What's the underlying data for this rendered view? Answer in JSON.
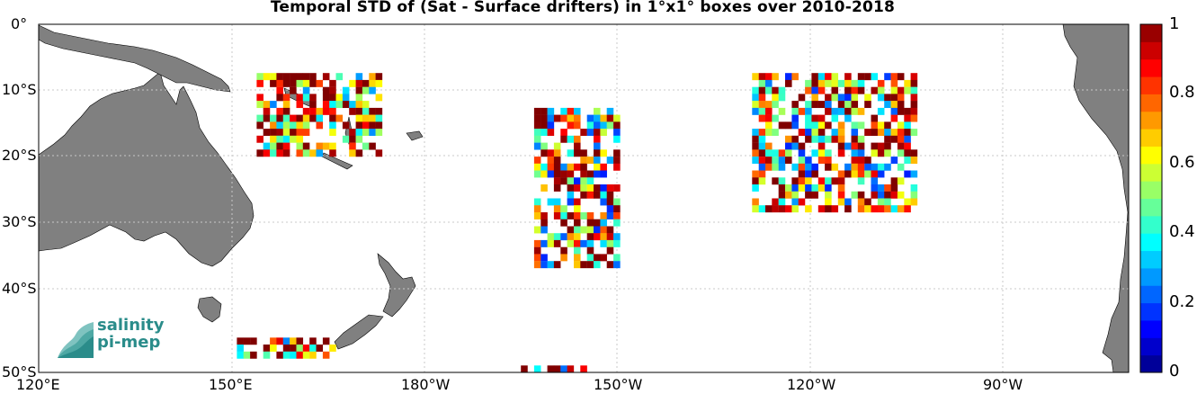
{
  "title": "Temporal STD of (Sat - Surface drifters) in 1°x1° boxes over 2010-2018",
  "map": {
    "lon_range": [
      120,
      285
    ],
    "lat_range": [
      -50,
      0
    ],
    "land_color": "#808080",
    "ocean_color": "#ffffff",
    "grid": true,
    "x_ticks": [
      "120°E",
      "150°E",
      "180°W",
      "150°W",
      "120°W",
      "90°W"
    ],
    "y_ticks": [
      "0°",
      "10°S",
      "20°S",
      "30°S",
      "40°S",
      "50°S"
    ]
  },
  "colorbar": {
    "colormap": "jet",
    "range": [
      0,
      1
    ],
    "tick_labels": [
      "1",
      "0.8",
      "0.6",
      "0.4",
      "0.2",
      "0"
    ]
  },
  "logo": {
    "line1": "salinity",
    "line2": "pi-mep",
    "color": "#2a8c8a"
  },
  "chart_data": {
    "type": "heatmap",
    "title": "Temporal STD of (Sat - Surface drifters) in 1°x1° boxes over 2010-2018",
    "xlabel": "",
    "ylabel": "",
    "cell_size_deg": 1,
    "value_range": [
      0,
      1
    ],
    "regions": [
      {
        "lon": [
          153,
          172
        ],
        "lat": [
          -19,
          -7
        ],
        "typical_std": 0.7
      },
      {
        "lon": [
          150,
          165
        ],
        "lat": [
          -48,
          -45
        ],
        "typical_std": 0.7
      },
      {
        "lon": [
          195,
          208
        ],
        "lat": [
          -35,
          -12
        ],
        "typical_std": 0.6
      },
      {
        "lon": [
          228,
          253
        ],
        "lat": [
          -27,
          -7
        ],
        "typical_std": 0.6
      },
      {
        "lon": [
          193,
          203
        ],
        "lat": [
          -50,
          -49
        ],
        "typical_std": 0.6
      }
    ]
  }
}
